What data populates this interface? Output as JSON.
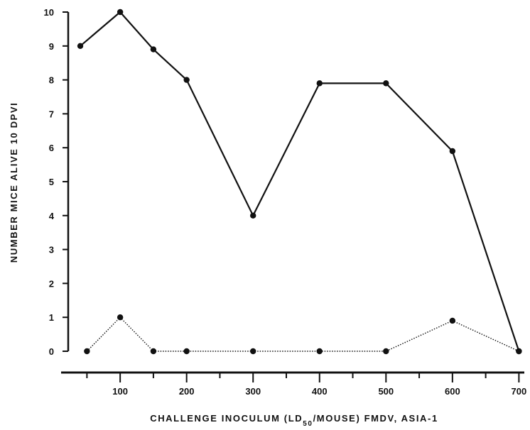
{
  "chart_data": {
    "type": "line",
    "title": "",
    "xlabel_parts": [
      "CHALLENGE INOCULUM (LD",
      "50",
      "/MOUSE) FMDV, ASIA-1"
    ],
    "ylabel": "NUMBER MICE ALIVE 10 DPVI",
    "xlim": [
      0,
      700
    ],
    "ylim": [
      0,
      10
    ],
    "x_ticks": [
      100,
      200,
      300,
      400,
      500,
      600,
      700
    ],
    "x_minor_ticks": [
      50,
      150,
      250,
      350,
      450,
      550,
      650
    ],
    "y_ticks": [
      0,
      1,
      2,
      3,
      4,
      5,
      6,
      7,
      8,
      9,
      10
    ],
    "grid": false,
    "series": [
      {
        "style": "solid",
        "color": "#111111",
        "points": [
          {
            "x": 40,
            "y": 9
          },
          {
            "x": 100,
            "y": 10
          },
          {
            "x": 150,
            "y": 8.9
          },
          {
            "x": 200,
            "y": 8
          },
          {
            "x": 300,
            "y": 4
          },
          {
            "x": 400,
            "y": 7.9
          },
          {
            "x": 500,
            "y": 7.9
          },
          {
            "x": 600,
            "y": 5.9
          },
          {
            "x": 700,
            "y": 0
          }
        ]
      },
      {
        "style": "dotted",
        "color": "#111111",
        "points": [
          {
            "x": 50,
            "y": 0
          },
          {
            "x": 100,
            "y": 1
          },
          {
            "x": 150,
            "y": 0
          },
          {
            "x": 200,
            "y": 0
          },
          {
            "x": 300,
            "y": 0
          },
          {
            "x": 400,
            "y": 0
          },
          {
            "x": 500,
            "y": 0
          },
          {
            "x": 600,
            "y": 0.9
          },
          {
            "x": 700,
            "y": 0
          }
        ]
      }
    ]
  }
}
